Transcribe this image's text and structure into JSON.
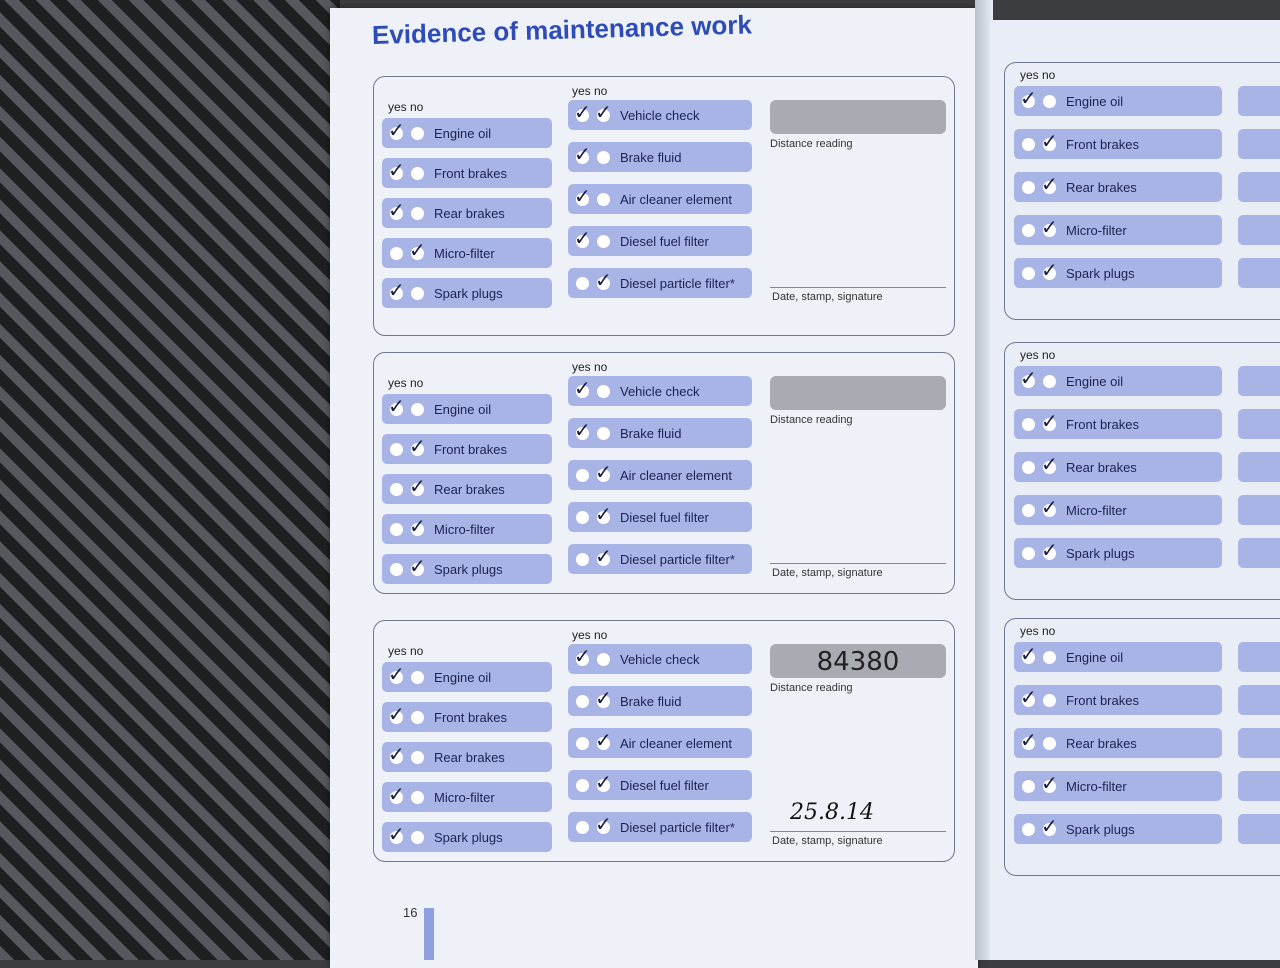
{
  "page": {
    "title": "Evidence of maintenance work",
    "page_number": "16"
  },
  "labels": {
    "yes_no": "yes no",
    "distance_reading": "Distance reading",
    "date_stamp_signature": "Date, stamp, signature"
  },
  "left_blocks": [
    {
      "col1": [
        {
          "label": "Engine oil",
          "yes": true,
          "no": false
        },
        {
          "label": "Front brakes",
          "yes": true,
          "no": false
        },
        {
          "label": "Rear brakes",
          "yes": true,
          "no": false
        },
        {
          "label": "Micro-filter",
          "yes": false,
          "no": true
        },
        {
          "label": "Spark plugs",
          "yes": true,
          "no": false
        }
      ],
      "col2": [
        {
          "label": "Vehicle check",
          "yes": true,
          "no": true
        },
        {
          "label": "Brake fluid",
          "yes": true,
          "no": false
        },
        {
          "label": "Air cleaner element",
          "yes": true,
          "no": false
        },
        {
          "label": "Diesel fuel filter",
          "yes": true,
          "no": false
        },
        {
          "label": "Diesel particle filter*",
          "yes": false,
          "no": true
        }
      ],
      "distance": "",
      "date": ""
    },
    {
      "col1": [
        {
          "label": "Engine oil",
          "yes": true,
          "no": false
        },
        {
          "label": "Front brakes",
          "yes": false,
          "no": true
        },
        {
          "label": "Rear brakes",
          "yes": false,
          "no": true
        },
        {
          "label": "Micro-filter",
          "yes": false,
          "no": true
        },
        {
          "label": "Spark plugs",
          "yes": false,
          "no": true
        }
      ],
      "col2": [
        {
          "label": "Vehicle check",
          "yes": true,
          "no": false
        },
        {
          "label": "Brake fluid",
          "yes": true,
          "no": false
        },
        {
          "label": "Air cleaner element",
          "yes": false,
          "no": true
        },
        {
          "label": "Diesel fuel filter",
          "yes": false,
          "no": true
        },
        {
          "label": "Diesel particle filter*",
          "yes": false,
          "no": true
        }
      ],
      "distance": "",
      "date": ""
    },
    {
      "col1": [
        {
          "label": "Engine oil",
          "yes": true,
          "no": false
        },
        {
          "label": "Front brakes",
          "yes": true,
          "no": false
        },
        {
          "label": "Rear brakes",
          "yes": true,
          "no": false
        },
        {
          "label": "Micro-filter",
          "yes": true,
          "no": false
        },
        {
          "label": "Spark plugs",
          "yes": true,
          "no": false
        }
      ],
      "col2": [
        {
          "label": "Vehicle check",
          "yes": true,
          "no": false
        },
        {
          "label": "Brake fluid",
          "yes": false,
          "no": true
        },
        {
          "label": "Air cleaner element",
          "yes": false,
          "no": true
        },
        {
          "label": "Diesel fuel filter",
          "yes": false,
          "no": true
        },
        {
          "label": "Diesel particle filter*",
          "yes": false,
          "no": true
        }
      ],
      "distance": "84380",
      "date": "25.8.14"
    }
  ],
  "right_blocks": [
    {
      "col1": [
        {
          "label": "Engine oil",
          "yes": true,
          "no": false
        },
        {
          "label": "Front brakes",
          "yes": false,
          "no": true
        },
        {
          "label": "Rear brakes",
          "yes": false,
          "no": true
        },
        {
          "label": "Micro-filter",
          "yes": false,
          "no": true
        },
        {
          "label": "Spark plugs",
          "yes": false,
          "no": true
        }
      ]
    },
    {
      "col1": [
        {
          "label": "Engine oil",
          "yes": true,
          "no": false
        },
        {
          "label": "Front brakes",
          "yes": false,
          "no": true
        },
        {
          "label": "Rear brakes",
          "yes": false,
          "no": true
        },
        {
          "label": "Micro-filter",
          "yes": false,
          "no": true
        },
        {
          "label": "Spark plugs",
          "yes": false,
          "no": true
        }
      ]
    },
    {
      "col1": [
        {
          "label": "Engine oil",
          "yes": true,
          "no": false
        },
        {
          "label": "Front brakes",
          "yes": true,
          "no": false
        },
        {
          "label": "Rear brakes",
          "yes": true,
          "no": false
        },
        {
          "label": "Micro-filter",
          "yes": false,
          "no": true
        },
        {
          "label": "Spark plugs",
          "yes": false,
          "no": true
        }
      ]
    }
  ]
}
